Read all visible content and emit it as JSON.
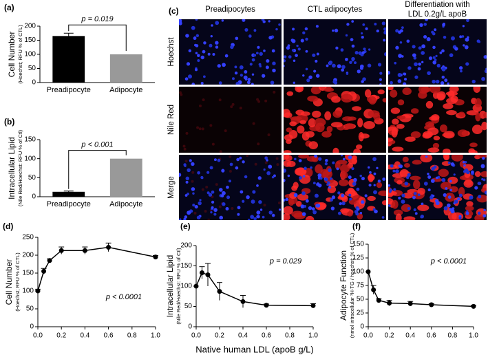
{
  "chart_data": [
    {
      "type": "bar",
      "panel_label": "(a)",
      "ylabel": "Cell Number",
      "ylabel_sub": "(Hoechst; RFU % of CTL)",
      "categories": [
        "Preadipocyte",
        "Adipocyte"
      ],
      "values": [
        165,
        100
      ],
      "errors": [
        10,
        null
      ],
      "colors": [
        "#000000",
        "#999999"
      ],
      "ylim": [
        0,
        200
      ],
      "yticks": [
        0,
        50,
        100,
        150,
        200
      ],
      "annotation": "p = 0.019"
    },
    {
      "type": "bar",
      "panel_label": "(b)",
      "ylabel": "Intracellular Lipid",
      "ylabel_sub": "(Nile Red/Hoechst: RFU % of Ctl)",
      "categories": [
        "Preadipocyte",
        "Adipocyte"
      ],
      "values": [
        13,
        100
      ],
      "errors": [
        2,
        null
      ],
      "colors": [
        "#000000",
        "#999999"
      ],
      "ylim": [
        0,
        150
      ],
      "yticks": [
        0,
        50,
        100,
        150
      ],
      "annotation": "p < 0.001"
    },
    {
      "type": "line",
      "panel_label": "(d)",
      "ylabel": "Cell Number",
      "ylabel_sub": "(Hoechst; RFU % of CTL)",
      "x": [
        0,
        0.05,
        0.1,
        0.2,
        0.4,
        0.6,
        1.0
      ],
      "values": [
        100,
        155,
        185,
        213,
        213,
        222,
        195
      ],
      "errors": [
        5,
        8,
        5,
        10,
        10,
        12,
        4
      ],
      "color": "#000000",
      "xlim": [
        0,
        1
      ],
      "xticks": [
        {
          "value": 0,
          "label": "0.0"
        },
        0.2,
        0.4,
        0.6,
        0.8,
        {
          "value": 1,
          "label": "1.0"
        }
      ],
      "ylim": [
        0,
        250
      ],
      "yticks": [
        0,
        50,
        100,
        150,
        200,
        250
      ],
      "annotation": "p < 0.0001"
    },
    {
      "type": "line",
      "panel_label": "(e)",
      "ylabel": "Intracellular Lipid",
      "ylabel_sub": "(Nile Red/Hoechst: RFU % of Ctl)",
      "x": [
        0,
        0.05,
        0.1,
        0.2,
        0.4,
        0.6,
        1.0
      ],
      "values": [
        100,
        133,
        128,
        87,
        62,
        53,
        52
      ],
      "errors": [
        null,
        15,
        28,
        22,
        15,
        3,
        5
      ],
      "color": "#000000",
      "xlim": [
        0,
        1
      ],
      "xticks": [
        {
          "value": 0,
          "label": "0.0"
        },
        0.2,
        0.4,
        0.6,
        0.8,
        {
          "value": 1,
          "label": "1.0"
        }
      ],
      "ylim": [
        0,
        200
      ],
      "yticks": [
        0,
        50,
        100,
        150,
        200
      ],
      "annotation": "p = 0.029"
    },
    {
      "type": "line",
      "panel_label": "(f)",
      "ylabel": "Adipocyte Function",
      "ylabel_sub": "(nmol intracellular ³H-TG / hoechst; % of CTL)",
      "x": [
        0,
        0.05,
        0.1,
        0.2,
        0.4,
        0.6,
        1.0
      ],
      "values": [
        100,
        67,
        48,
        43,
        42,
        40,
        37
      ],
      "errors": [
        null,
        8,
        3,
        5,
        4,
        2,
        2
      ],
      "color": "#000000",
      "xlim": [
        0,
        1
      ],
      "xticks": [
        {
          "value": 0,
          "label": "0.0"
        },
        0.2,
        0.4,
        0.6,
        0.8,
        {
          "value": 1,
          "label": "1.0"
        }
      ],
      "ylim": [
        0,
        150
      ],
      "yticks": [
        0,
        25,
        50,
        75,
        100,
        125,
        150
      ],
      "annotation": "p < 0.0001"
    }
  ],
  "shared_xlabel": "Native human LDL (apoB g/L)",
  "image_panel": {
    "panel_label": "(c)",
    "column_titles": [
      [
        "Preadipocytes"
      ],
      [
        "CTL adipocytes"
      ],
      [
        "Differentiation with",
        "LDL 0.2g/L apoB"
      ]
    ],
    "row_labels": [
      "Hoechst",
      "Nile Red",
      "Merge"
    ]
  }
}
